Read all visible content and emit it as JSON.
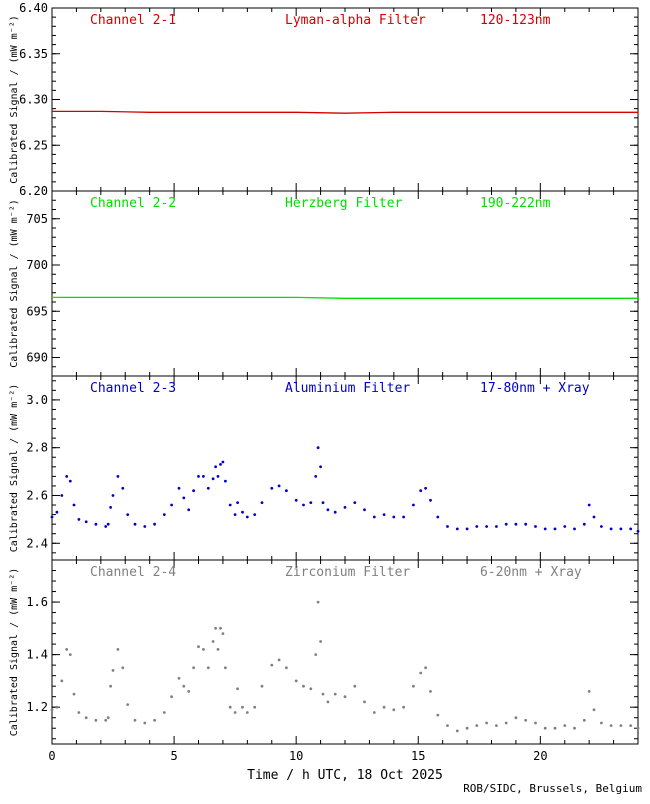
{
  "credit": "ROB/SIDC, Brussels, Belgium",
  "colors": {
    "ch1": "#d40000",
    "ch2": "#00e000",
    "ch3": "#0000cc",
    "ch4": "#808080"
  },
  "chart_data": [
    {
      "type": "line",
      "channel": "Channel 2-1",
      "filter": "Lyman-alpha Filter",
      "band": "120-123nm",
      "color": "#d40000",
      "ylabel": "Calibrated Signal / (mW m⁻²)",
      "ylim": [
        6.2,
        6.4
      ],
      "yticks": [
        6.2,
        6.25,
        6.3,
        6.35,
        6.4
      ],
      "yticklabels": [
        "6.20",
        "6.25",
        "6.30",
        "6.35",
        "6.40"
      ],
      "xlim": [
        0,
        24
      ],
      "x": [
        0,
        2,
        4,
        6,
        8,
        10,
        12,
        14,
        16,
        18,
        20,
        22,
        24
      ],
      "y": [
        6.287,
        6.287,
        6.286,
        6.286,
        6.286,
        6.286,
        6.285,
        6.286,
        6.286,
        6.286,
        6.286,
        6.286,
        6.286
      ]
    },
    {
      "type": "line",
      "channel": "Channel 2-2",
      "filter": "Herzberg Filter",
      "band": "190-222nm",
      "color": "#00e000",
      "ylabel": "Calibrated Signal / (mW m⁻²)",
      "ylim": [
        688,
        708
      ],
      "yticks": [
        690,
        695,
        700,
        705
      ],
      "yticklabels": [
        "690",
        "695",
        "700",
        "705"
      ],
      "xlim": [
        0,
        24
      ],
      "x": [
        0,
        2,
        4,
        6,
        8,
        10,
        12,
        14,
        16,
        18,
        20,
        22,
        24
      ],
      "y": [
        696.5,
        696.5,
        696.5,
        696.5,
        696.5,
        696.5,
        696.4,
        696.4,
        696.4,
        696.4,
        696.4,
        696.4,
        696.4
      ]
    },
    {
      "type": "scatter",
      "channel": "Channel 2-3",
      "filter": "Aluminium Filter",
      "band": "17-80nm + Xray",
      "color": "#0000cc",
      "ylabel": "Calibrated Signal / (mW m⁻²)",
      "ylim": [
        2.33,
        3.1
      ],
      "yticks": [
        2.4,
        2.6,
        2.8,
        3.0
      ],
      "yticklabels": [
        "2.4",
        "2.6",
        "2.8",
        "3.0"
      ],
      "xlim": [
        0,
        24
      ],
      "x": [
        0.0,
        0.2,
        0.4,
        0.6,
        0.75,
        0.9,
        1.1,
        1.4,
        1.8,
        2.2,
        2.3,
        2.4,
        2.5,
        2.7,
        2.9,
        3.1,
        3.4,
        3.8,
        4.2,
        4.6,
        4.9,
        5.2,
        5.4,
        5.6,
        5.8,
        6.0,
        6.2,
        6.4,
        6.6,
        6.7,
        6.8,
        6.9,
        7.0,
        7.1,
        7.3,
        7.5,
        7.6,
        7.8,
        8.0,
        8.3,
        8.6,
        9.0,
        9.3,
        9.6,
        10.0,
        10.3,
        10.6,
        10.8,
        10.9,
        11.0,
        11.1,
        11.3,
        11.6,
        12.0,
        12.4,
        12.8,
        13.2,
        13.6,
        14.0,
        14.4,
        14.8,
        15.1,
        15.3,
        15.5,
        15.8,
        16.2,
        16.6,
        17.0,
        17.4,
        17.8,
        18.2,
        18.6,
        19.0,
        19.4,
        19.8,
        20.2,
        20.6,
        21.0,
        21.4,
        21.8,
        22.0,
        22.2,
        22.5,
        22.9,
        23.3,
        23.7,
        24.0
      ],
      "y": [
        2.51,
        2.53,
        2.6,
        2.68,
        2.66,
        2.56,
        2.5,
        2.49,
        2.48,
        2.47,
        2.48,
        2.55,
        2.6,
        2.68,
        2.63,
        2.52,
        2.48,
        2.47,
        2.48,
        2.52,
        2.56,
        2.63,
        2.59,
        2.54,
        2.62,
        2.68,
        2.68,
        2.63,
        2.67,
        2.72,
        2.68,
        2.73,
        2.74,
        2.66,
        2.56,
        2.52,
        2.57,
        2.53,
        2.51,
        2.52,
        2.57,
        2.63,
        2.64,
        2.62,
        2.58,
        2.56,
        2.57,
        2.68,
        2.8,
        2.72,
        2.57,
        2.54,
        2.53,
        2.55,
        2.57,
        2.54,
        2.51,
        2.52,
        2.51,
        2.51,
        2.56,
        2.62,
        2.63,
        2.58,
        2.51,
        2.47,
        2.46,
        2.46,
        2.47,
        2.47,
        2.47,
        2.48,
        2.48,
        2.48,
        2.47,
        2.46,
        2.46,
        2.47,
        2.46,
        2.48,
        2.56,
        2.51,
        2.47,
        2.46,
        2.46,
        2.46,
        2.45
      ]
    },
    {
      "type": "scatter",
      "channel": "Channel 2-4",
      "filter": "Zirconium Filter",
      "band": "6-20nm + Xray",
      "color": "#808080",
      "ylabel": "Calibrated Signal / (mW m⁻²)",
      "ylim": [
        1.06,
        1.76
      ],
      "yticks": [
        1.2,
        1.4,
        1.6
      ],
      "yticklabels": [
        "1.2",
        "1.4",
        "1.6"
      ],
      "xlim": [
        0,
        24
      ],
      "x": [
        0.0,
        0.2,
        0.4,
        0.6,
        0.75,
        0.9,
        1.1,
        1.4,
        1.8,
        2.2,
        2.3,
        2.4,
        2.5,
        2.7,
        2.9,
        3.1,
        3.4,
        3.8,
        4.2,
        4.6,
        4.9,
        5.2,
        5.4,
        5.6,
        5.8,
        6.0,
        6.2,
        6.4,
        6.6,
        6.7,
        6.8,
        6.9,
        7.0,
        7.1,
        7.3,
        7.5,
        7.6,
        7.8,
        8.0,
        8.3,
        8.6,
        9.0,
        9.3,
        9.6,
        10.0,
        10.3,
        10.6,
        10.8,
        10.9,
        11.0,
        11.1,
        11.3,
        11.6,
        12.0,
        12.4,
        12.8,
        13.2,
        13.6,
        14.0,
        14.4,
        14.8,
        15.1,
        15.3,
        15.5,
        15.8,
        16.2,
        16.6,
        17.0,
        17.4,
        17.8,
        18.2,
        18.6,
        19.0,
        19.4,
        19.8,
        20.2,
        20.6,
        21.0,
        21.4,
        21.8,
        22.0,
        22.2,
        22.5,
        22.9,
        23.3,
        23.7,
        24.0
      ],
      "y": [
        1.19,
        1.2,
        1.3,
        1.42,
        1.4,
        1.25,
        1.18,
        1.16,
        1.15,
        1.15,
        1.16,
        1.28,
        1.34,
        1.42,
        1.35,
        1.21,
        1.15,
        1.14,
        1.15,
        1.18,
        1.24,
        1.31,
        1.28,
        1.26,
        1.35,
        1.43,
        1.42,
        1.35,
        1.45,
        1.5,
        1.42,
        1.5,
        1.48,
        1.35,
        1.2,
        1.18,
        1.27,
        1.2,
        1.18,
        1.2,
        1.28,
        1.36,
        1.38,
        1.35,
        1.3,
        1.28,
        1.27,
        1.4,
        1.6,
        1.45,
        1.25,
        1.22,
        1.25,
        1.24,
        1.28,
        1.22,
        1.18,
        1.2,
        1.19,
        1.2,
        1.28,
        1.33,
        1.35,
        1.26,
        1.17,
        1.13,
        1.11,
        1.12,
        1.13,
        1.14,
        1.13,
        1.14,
        1.16,
        1.15,
        1.14,
        1.12,
        1.12,
        1.13,
        1.12,
        1.15,
        1.26,
        1.19,
        1.14,
        1.13,
        1.13,
        1.13,
        1.12
      ]
    }
  ],
  "xaxis": {
    "label": "Time / h UTC, 18 Oct 2025",
    "ticks": [
      0,
      5,
      10,
      15,
      20
    ],
    "ticklabels": [
      "0",
      "5",
      "10",
      "15",
      "20"
    ],
    "minor": [
      1,
      2,
      3,
      4,
      6,
      7,
      8,
      9,
      11,
      12,
      13,
      14,
      16,
      17,
      18,
      19,
      21,
      22,
      23
    ]
  }
}
